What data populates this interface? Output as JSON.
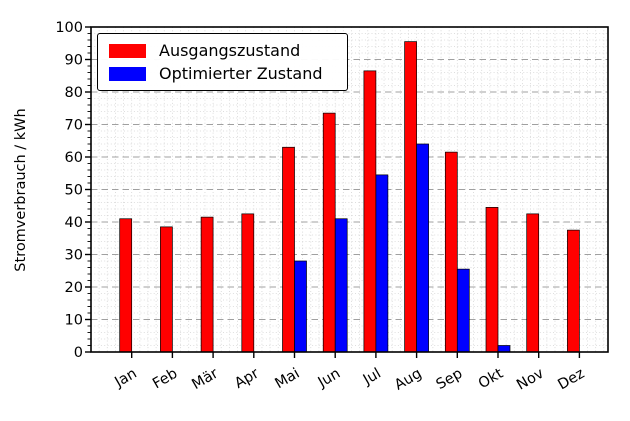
{
  "chart_data": {
    "type": "bar",
    "title": "",
    "xlabel": "",
    "ylabel": "Stromverbrauch / kWh",
    "ylim": [
      0,
      100
    ],
    "y_major_step": 10,
    "y_minor_step": 2,
    "grid": true,
    "legend_position": "upper-left",
    "categories": [
      "Jan",
      "Feb",
      "Mär",
      "Apr",
      "Mai",
      "Jun",
      "Jul",
      "Aug",
      "Sep",
      "Okt",
      "Nov",
      "Dez"
    ],
    "series": [
      {
        "name": "Ausgangszustand",
        "color": "#ff0000",
        "values": [
          41,
          38.5,
          41.5,
          42.5,
          63,
          73.5,
          86.5,
          95.5,
          61.5,
          44.5,
          42.5,
          37.5
        ]
      },
      {
        "name": "Optimierter Zustand",
        "color": "#0000ff",
        "values": [
          0,
          0,
          0,
          0,
          28,
          41,
          54.5,
          64,
          25.5,
          2,
          0,
          0
        ]
      }
    ]
  }
}
